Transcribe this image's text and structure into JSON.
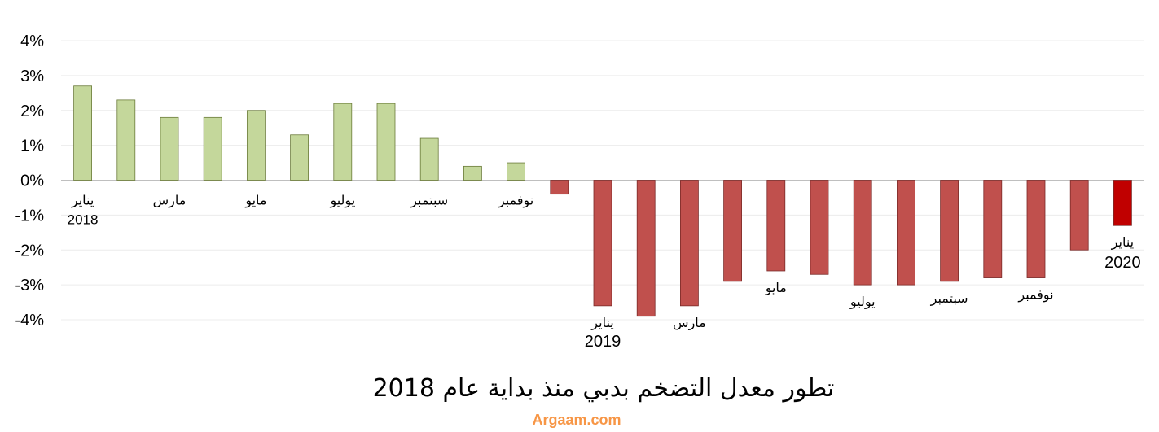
{
  "chart_data": {
    "type": "bar",
    "title": "تطور معدل التضخم بدبي منذ بداية عام 2018",
    "xlabel": "",
    "ylabel": "",
    "ylim": [
      -4,
      4
    ],
    "yticks": [
      "4%",
      "3%",
      "2%",
      "1%",
      "0%",
      "-1%",
      "-2%",
      "-3%",
      "-4%"
    ],
    "grid": true,
    "legend": "none",
    "positive_color": "#c4d79b",
    "negative_color": "#c0504d",
    "highlight_color": "#c00000",
    "values": [
      2.7,
      2.3,
      1.8,
      1.8,
      2.0,
      1.3,
      2.2,
      2.2,
      1.2,
      0.4,
      0.5,
      -0.4,
      -3.6,
      -3.9,
      -3.6,
      -2.9,
      -2.6,
      -2.7,
      -3.0,
      -3.0,
      -2.9,
      -2.8,
      -2.8,
      -2.0,
      -1.3
    ],
    "category_labels": [
      {
        "index": 0,
        "month": "يناير",
        "year": "2018"
      },
      {
        "index": 2,
        "month": "مارس"
      },
      {
        "index": 4,
        "month": "مايو"
      },
      {
        "index": 6,
        "month": "يوليو"
      },
      {
        "index": 8,
        "month": "سبتمبر"
      },
      {
        "index": 10,
        "month": "نوفمبر"
      },
      {
        "index": 12,
        "month": "يناير",
        "year": "2019"
      },
      {
        "index": 14,
        "month": "مارس"
      },
      {
        "index": 16,
        "month": "مايو"
      },
      {
        "index": 18,
        "month": "يوليو"
      },
      {
        "index": 20,
        "month": "سبتمبر"
      },
      {
        "index": 22,
        "month": "نوفمبر"
      },
      {
        "index": 24,
        "month": "يناير",
        "year": "2020"
      }
    ]
  },
  "source": {
    "text": "Argaam.com",
    "color": "#f79646"
  }
}
